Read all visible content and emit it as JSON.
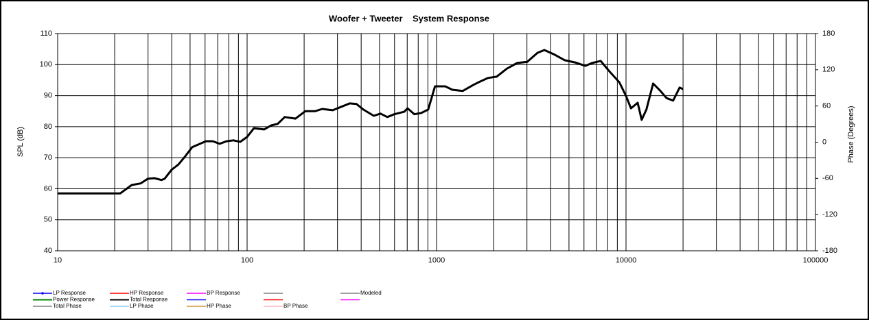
{
  "chart_data": {
    "type": "line",
    "title": "Woofer + Tweeter    System Response",
    "y_label": "SPL (dB)",
    "y2_label": "Phase (Degrees)",
    "x_scale": "log",
    "grid": true,
    "xlim": [
      10,
      100000
    ],
    "xticks": [
      10,
      100,
      1000,
      10000,
      100000
    ],
    "ylim": [
      40,
      110
    ],
    "yticks": [
      40,
      50,
      60,
      70,
      80,
      90,
      100,
      110
    ],
    "y2lim": [
      -180,
      180
    ],
    "y2ticks": [
      -180,
      -120,
      -60,
      0,
      60,
      120,
      180
    ],
    "x": [
      10,
      21.4,
      24.6,
      27.4,
      29.9,
      32.4,
      35.3,
      36.7,
      39.9,
      43.4,
      47.2,
      51.3,
      60.6,
      65.9,
      71.6,
      77.9,
      84.6,
      92,
      100,
      108.7,
      123,
      134,
      145,
      158,
      180,
      203,
      229,
      249,
      283,
      308,
      348,
      378,
      411,
      466,
      506,
      550,
      598,
      675,
      703,
      764,
      830,
      903,
      981,
      1112,
      1212,
      1373,
      1557,
      1692,
      1868,
      2075,
      2350,
      2660,
      3010,
      3410,
      3710,
      4200,
      4750,
      5380,
      6090,
      6610,
      7350,
      8150,
      9220,
      10030,
      10620,
      11520,
      12100,
      12810,
      13900,
      15100,
      16370,
      17740,
      19180,
      20000
    ],
    "series": [
      {
        "color": "#000000",
        "values": [
          58.5,
          58.5,
          61.2,
          61.7,
          63.2,
          63.4,
          62.8,
          63.2,
          66.1,
          67.8,
          70.5,
          73.4,
          75.3,
          75.3,
          74.5,
          75.3,
          75.6,
          75.1,
          76.7,
          79.5,
          79.1,
          80.4,
          80.9,
          83.1,
          82.6,
          85,
          85,
          85.7,
          85.3,
          86.2,
          87.5,
          87.3,
          85.5,
          83.5,
          84.2,
          83.1,
          84,
          84.8,
          85.9,
          84,
          84.4,
          85.5,
          93,
          93,
          91.9,
          91.5,
          93.4,
          94.5,
          95.7,
          96.1,
          98.7,
          100.5,
          100.9,
          103.8,
          104.7,
          103.2,
          101.4,
          100.7,
          99.6,
          100.5,
          101.2,
          97.9,
          94.3,
          89.7,
          85.9,
          87.7,
          82.2,
          85.5,
          93.9,
          91.7,
          89.2,
          88.4,
          92.6,
          92.1
        ]
      }
    ],
    "legend": [
      {
        "name": "LP Response",
        "color": "#0000ff"
      },
      {
        "name": "HP Response",
        "color": "#ff0000"
      },
      {
        "name": "BP Response",
        "color": "#ff00ff"
      },
      {
        "color": "#808080"
      },
      {
        "name": "Modeled",
        "color": "#808080"
      },
      {
        "name": "Power Response",
        "color": "#008000"
      },
      {
        "name": "Total Response",
        "color": "#000000"
      },
      {
        "color": "#0000ff"
      },
      {
        "color": "#ff0000"
      },
      {
        "color": "#ff00ff"
      },
      {
        "name": "Total Phase",
        "color": "#808080"
      },
      {
        "name": "LP Phase",
        "color": "#87cefa"
      },
      {
        "name": "HP Phase",
        "color": "#cc9933"
      },
      {
        "name": "BP Phase",
        "color": "#ffb6c1"
      }
    ]
  }
}
